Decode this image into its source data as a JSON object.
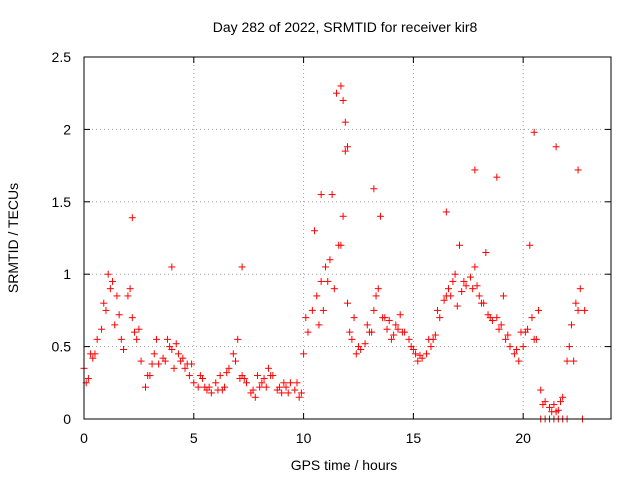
{
  "chart_data": {
    "type": "scatter",
    "title": "Day 282 of 2022, SRMTID for receiver kir8",
    "xlabel": "GPS time / hours",
    "ylabel": "SRMTID / TECUs",
    "xlim": [
      0,
      24
    ],
    "ylim": [
      0,
      2.5
    ],
    "x_ticks": [
      0,
      5,
      10,
      15,
      20
    ],
    "x_tick_labels": [
      "0",
      "5",
      "10",
      "15",
      "20"
    ],
    "y_ticks": [
      0,
      0.5,
      1,
      1.5,
      2,
      2.5
    ],
    "y_tick_labels": [
      "0",
      "0.5",
      "1",
      "1.5",
      "2",
      "2.5"
    ],
    "grid": true,
    "marker": "+",
    "series": [
      {
        "name": "SRMTID",
        "color": "#ff0000",
        "x": [
          0.0,
          0.2,
          0.4,
          0.6,
          0.8,
          1.0,
          1.2,
          1.4,
          1.6,
          1.8,
          2.0,
          2.2,
          2.4,
          2.6,
          2.8,
          3.0,
          3.2,
          3.4,
          3.6,
          3.8,
          4.0,
          4.2,
          4.4,
          4.6,
          4.8,
          5.0,
          5.2,
          5.4,
          5.6,
          5.8,
          6.0,
          6.2,
          6.4,
          6.6,
          6.8,
          7.0,
          7.2,
          7.4,
          7.6,
          7.8,
          8.0,
          8.2,
          8.4,
          8.6,
          8.8,
          9.0,
          9.2,
          9.4,
          9.6,
          9.8,
          10.0,
          10.2,
          10.4,
          10.6,
          10.8,
          11.0,
          11.2,
          11.4,
          11.6,
          11.8,
          12.0,
          12.2,
          12.4,
          12.6,
          12.8,
          13.0,
          13.2,
          13.4,
          13.6,
          13.8,
          14.0,
          14.2,
          14.4,
          14.6,
          14.8,
          15.0,
          15.2,
          15.4,
          15.6,
          15.8,
          16.0,
          16.2,
          16.4,
          16.6,
          16.8,
          17.0,
          17.2,
          17.4,
          17.6,
          17.8,
          18.0,
          18.2,
          18.4,
          18.6,
          18.8,
          19.0,
          19.2,
          19.4,
          19.6,
          19.8,
          20.0,
          20.2,
          20.4,
          20.6,
          20.8,
          21.0,
          21.2,
          21.4,
          21.6,
          21.8,
          22.0,
          22.2,
          22.4,
          22.6,
          22.8,
          0.1,
          0.5,
          0.9,
          1.3,
          1.7,
          2.1,
          2.5,
          2.9,
          3.3,
          3.7,
          4.1,
          4.5,
          4.9,
          5.3,
          5.7,
          6.1,
          6.5,
          6.9,
          7.3,
          7.7,
          8.1,
          8.5,
          8.9,
          9.3,
          9.7,
          10.1,
          10.5,
          10.9,
          11.3,
          11.7,
          12.1,
          12.5,
          12.9,
          13.3,
          13.7,
          14.1,
          14.5,
          14.9,
          15.3,
          15.7,
          16.1,
          16.5,
          16.9,
          17.3,
          17.7,
          18.1,
          18.5,
          18.9,
          19.3,
          19.7,
          20.1,
          20.5,
          20.9,
          21.3,
          21.7,
          22.1,
          22.5,
          0.3,
          1.1,
          1.5,
          2.3,
          3.1,
          3.9,
          4.3,
          4.7,
          5.5,
          6.3,
          7.1,
          7.9,
          8.3,
          9.1,
          9.9,
          10.7,
          11.1,
          11.9,
          12.3,
          13.1,
          13.9,
          14.3,
          15.1,
          15.9,
          16.7,
          17.1,
          17.9,
          18.3,
          19.1,
          19.9,
          20.7,
          21.5,
          22.3,
          2.2,
          4.0,
          7.2,
          10.8,
          11.5,
          11.7,
          11.8,
          11.9,
          12.0,
          13.2,
          13.5,
          16.5,
          17.8,
          18.8,
          20.3,
          20.5,
          21.5,
          22.5,
          20.8,
          21.0,
          21.2,
          21.4,
          21.6,
          21.8,
          22.0,
          22.7
        ],
        "y": [
          0.35,
          0.28,
          0.42,
          0.55,
          0.62,
          0.75,
          0.9,
          0.65,
          0.72,
          0.48,
          0.85,
          0.7,
          0.55,
          0.4,
          0.22,
          0.3,
          0.45,
          0.38,
          0.42,
          0.55,
          0.48,
          0.52,
          0.4,
          0.35,
          0.3,
          0.25,
          0.22,
          0.28,
          0.2,
          0.18,
          0.25,
          0.3,
          0.22,
          0.35,
          0.45,
          0.55,
          0.3,
          0.25,
          0.18,
          0.15,
          0.22,
          0.28,
          0.35,
          0.3,
          0.2,
          0.18,
          0.22,
          0.25,
          0.2,
          0.15,
          0.45,
          0.6,
          0.75,
          0.85,
          0.95,
          1.05,
          1.1,
          0.9,
          1.2,
          1.4,
          0.8,
          0.55,
          0.45,
          0.48,
          0.52,
          0.6,
          0.75,
          0.9,
          0.7,
          0.62,
          0.55,
          0.65,
          0.72,
          0.6,
          0.55,
          0.48,
          0.4,
          0.42,
          0.45,
          0.5,
          0.58,
          0.7,
          0.82,
          0.9,
          0.95,
          0.78,
          0.88,
          0.92,
          0.98,
          1.05,
          0.85,
          0.8,
          0.72,
          0.68,
          0.7,
          0.65,
          0.55,
          0.5,
          0.45,
          0.4,
          0.5,
          0.62,
          0.7,
          0.55,
          0.2,
          0.12,
          0.08,
          0.1,
          0.06,
          0.15,
          0.4,
          0.65,
          0.8,
          0.9,
          0.75,
          0.25,
          0.45,
          0.8,
          0.95,
          0.55,
          0.9,
          0.62,
          0.3,
          0.55,
          0.4,
          0.35,
          0.42,
          0.38,
          0.3,
          0.22,
          0.2,
          0.32,
          0.4,
          0.28,
          0.2,
          0.25,
          0.3,
          0.22,
          0.18,
          0.25,
          0.7,
          1.3,
          0.75,
          1.55,
          1.2,
          0.6,
          0.5,
          0.65,
          0.85,
          0.7,
          0.58,
          0.6,
          0.5,
          0.44,
          0.55,
          0.75,
          0.85,
          1.0,
          0.95,
          0.9,
          0.8,
          0.7,
          0.62,
          0.58,
          0.48,
          0.6,
          0.55,
          0.1,
          0.05,
          0.12,
          0.5,
          0.75,
          0.45,
          1.0,
          0.85,
          0.6,
          0.38,
          0.5,
          0.45,
          0.38,
          0.22,
          0.2,
          0.28,
          0.3,
          0.22,
          0.25,
          0.18,
          0.65,
          0.95,
          1.85,
          0.7,
          0.6,
          0.68,
          0.62,
          0.45,
          0.55,
          0.85,
          1.2,
          0.92,
          1.15,
          0.85,
          0.6,
          0.75,
          0.05,
          0.4,
          1.39,
          1.05,
          1.05,
          1.55,
          2.25,
          2.3,
          2.2,
          2.05,
          1.88,
          1.59,
          1.4,
          1.43,
          1.72,
          1.67,
          1.2,
          1.98,
          1.88,
          1.72,
          0.0,
          0.0,
          0.0,
          0.0,
          0.0,
          0.0,
          0.0,
          0.0
        ]
      }
    ]
  }
}
